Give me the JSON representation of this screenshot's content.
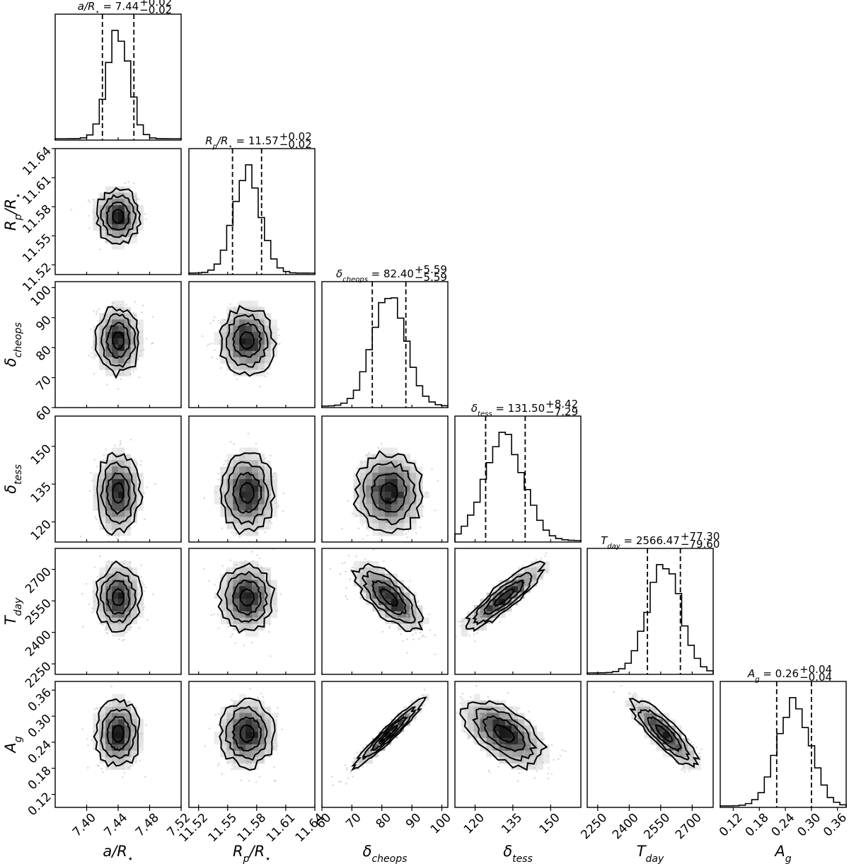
{
  "chart_data": {
    "type": "corner",
    "title": "",
    "parameters": [
      {
        "key": "aR",
        "label": "a/R",
        "label_sub": "⋆",
        "label_sub_italic": false,
        "median": 7.44,
        "sigma": 0.014,
        "range": [
          7.36,
          7.52
        ],
        "ticks": [
          7.4,
          7.44,
          7.48,
          7.52
        ],
        "title_text": "= 7.44",
        "title_plus": "+0.02",
        "title_minus": "−0.02",
        "q_low": 7.42,
        "q_high": 7.46
      },
      {
        "key": "RpR",
        "label": "R",
        "label_sub": "p",
        "label_sub_italic": true,
        "label_tail": "/R",
        "label_tail_sub": "⋆",
        "median": 11.57,
        "sigma": 0.014,
        "range": [
          11.51,
          11.64
        ],
        "ticks": [
          11.52,
          11.55,
          11.58,
          11.61,
          11.64
        ],
        "title_text": "= 11.57",
        "title_plus": "+0.02",
        "title_minus": "−0.02",
        "q_low": 11.555,
        "q_high": 11.585
      },
      {
        "key": "dch",
        "label": "δ",
        "label_sub": "cheops",
        "label_sub_italic": true,
        "median": 82.4,
        "sigma": 5.59,
        "range": [
          60,
          102
        ],
        "ticks": [
          60,
          70,
          80,
          90,
          100
        ],
        "title_text": "= 82.40",
        "title_plus": "+5.59",
        "title_minus": "−5.59",
        "q_low": 76.8,
        "q_high": 88.0
      },
      {
        "key": "dte",
        "label": "δ",
        "label_sub": "tess",
        "label_sub_italic": true,
        "median": 131.5,
        "sigma": 7.8,
        "range": [
          112,
          162
        ],
        "ticks": [
          120,
          135,
          150
        ],
        "title_text": "= 131.50",
        "title_plus": "+8.42",
        "title_minus": "−7.29",
        "q_low": 124.2,
        "q_high": 139.9
      },
      {
        "key": "Tday",
        "label": "T",
        "label_sub": "day",
        "label_sub_italic": true,
        "median": 2566.47,
        "sigma": 78,
        "range": [
          2200,
          2800
        ],
        "ticks": [
          2250,
          2400,
          2550,
          2700
        ],
        "title_text": "= 2566.47",
        "title_plus": "+77.30",
        "title_minus": "−79.60",
        "q_low": 2486.9,
        "q_high": 2643.8
      },
      {
        "key": "Ag",
        "label": "A",
        "label_sub": "g",
        "label_sub_italic": true,
        "median": 0.26,
        "sigma": 0.038,
        "range": [
          0.09,
          0.38
        ],
        "ticks": [
          0.12,
          0.18,
          0.24,
          0.3,
          0.36
        ],
        "title_text": "= 0.26",
        "title_plus": "+0.04",
        "title_minus": "−0.04",
        "q_low": 0.22,
        "q_high": 0.3
      }
    ],
    "correlations": {
      "dch-Ag": 0.96,
      "dte-Tday": 0.88,
      "dch-Tday": -0.7,
      "Tday-Ag": -0.85,
      "dte-Ag": -0.55,
      "dch-dte": 0.0
    },
    "tick_label_overrides": {
      "RpR": {
        "11.64": "11.64",
        "11.58": "11.58"
      }
    },
    "contour_levels_sigma": [
      0.5,
      1.0,
      1.5,
      2.0
    ],
    "grid": false
  }
}
